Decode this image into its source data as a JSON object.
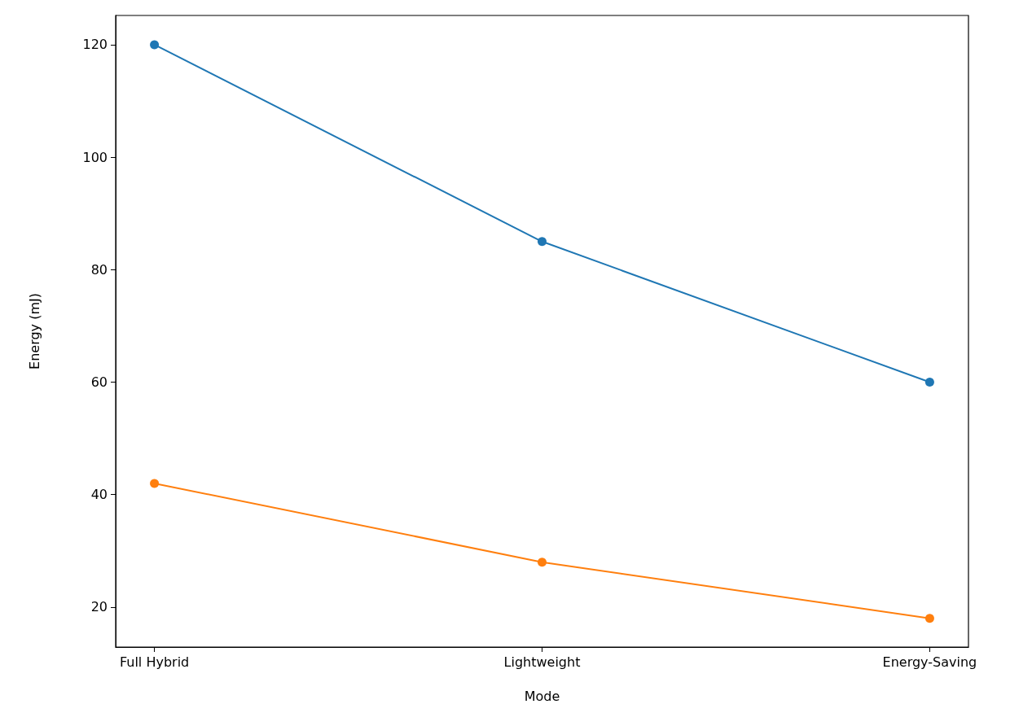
{
  "chart_data": {
    "type": "line",
    "xlabel": "Mode",
    "ylabel": "Energy (mJ)",
    "categories": [
      "Full Hybrid",
      "Lightweight",
      "Energy-Saving"
    ],
    "series": [
      {
        "color": "#1f77b4",
        "values": [
          120,
          85,
          60
        ]
      },
      {
        "color": "#ff7f0e",
        "values": [
          42,
          28,
          18
        ]
      }
    ],
    "ylim": [
      12.9,
      125.2
    ],
    "yticks": [
      20,
      40,
      60,
      80,
      100,
      120
    ],
    "marker": "circle",
    "line_style": "solid"
  }
}
